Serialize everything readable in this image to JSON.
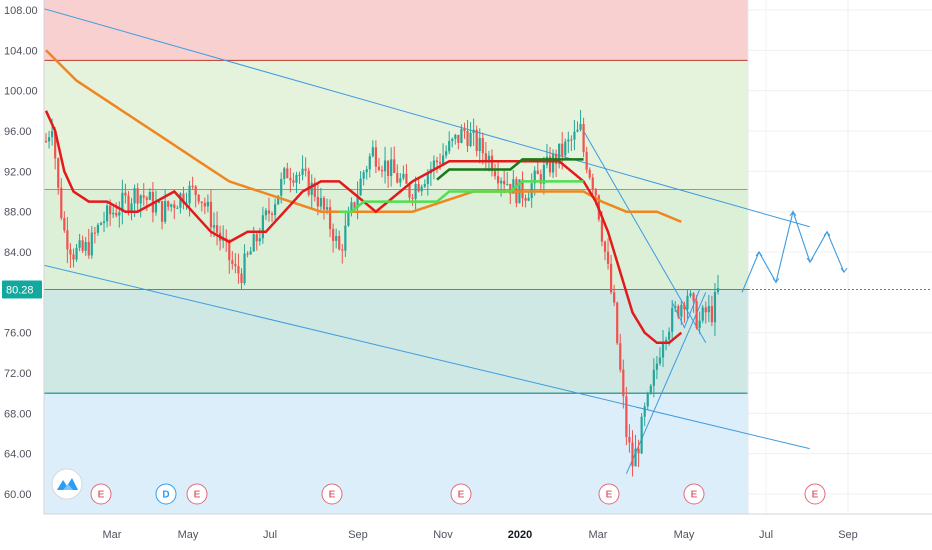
{
  "chart_data": {
    "type": "candlestick",
    "y_ticks": [
      "108.00",
      "104.00",
      "100.00",
      "96.00",
      "92.00",
      "88.00",
      "84.00",
      "80.28",
      "76.00",
      "72.00",
      "68.00",
      "64.00",
      "60.00"
    ],
    "y_tick_values": [
      108,
      104,
      100,
      96,
      92,
      88,
      84,
      76,
      72,
      68,
      64,
      60
    ],
    "last_price": 80.28,
    "last_price_label": "80.28",
    "x_ticks": [
      {
        "label": "Mar",
        "bold": false
      },
      {
        "label": "May",
        "bold": false
      },
      {
        "label": "Jul",
        "bold": false
      },
      {
        "label": "Sep",
        "bold": false
      },
      {
        "label": "Nov",
        "bold": false
      },
      {
        "label": "2020",
        "bold": true
      },
      {
        "label": "Mar",
        "bold": false
      },
      {
        "label": "May",
        "bold": false
      },
      {
        "label": "Jul",
        "bold": false
      },
      {
        "label": "Sep",
        "bold": false
      }
    ],
    "price_path": [
      [
        0,
        95
      ],
      [
        2,
        97
      ],
      [
        4,
        90
      ],
      [
        6,
        86
      ],
      [
        9,
        84
      ],
      [
        12,
        84
      ],
      [
        15,
        85
      ],
      [
        18,
        87
      ],
      [
        22,
        88
      ],
      [
        26,
        89
      ],
      [
        30,
        90
      ],
      [
        34,
        89
      ],
      [
        38,
        88
      ],
      [
        42,
        89
      ],
      [
        46,
        90
      ],
      [
        50,
        90
      ],
      [
        53,
        88
      ],
      [
        56,
        86
      ],
      [
        59,
        84
      ],
      [
        62,
        82
      ],
      [
        64,
        82
      ],
      [
        67,
        84
      ],
      [
        70,
        86
      ],
      [
        73,
        88
      ],
      [
        76,
        90
      ],
      [
        79,
        92
      ],
      [
        82,
        92
      ],
      [
        85,
        91
      ],
      [
        88,
        90
      ],
      [
        91,
        88
      ],
      [
        94,
        86
      ],
      [
        96,
        84
      ],
      [
        98,
        86
      ],
      [
        100,
        88
      ],
      [
        102,
        90
      ],
      [
        104,
        92
      ],
      [
        107,
        94
      ],
      [
        110,
        93
      ],
      [
        113,
        92
      ],
      [
        116,
        91
      ],
      [
        119,
        90
      ],
      [
        122,
        91
      ],
      [
        125,
        92
      ],
      [
        128,
        93
      ],
      [
        131,
        94
      ],
      [
        134,
        95
      ],
      [
        137,
        96
      ],
      [
        140,
        95
      ],
      [
        143,
        94
      ],
      [
        146,
        93
      ],
      [
        148,
        92
      ],
      [
        151,
        91
      ],
      [
        154,
        90
      ],
      [
        157,
        90
      ],
      [
        160,
        91
      ],
      [
        163,
        92
      ],
      [
        166,
        93
      ],
      [
        169,
        94
      ],
      [
        172,
        95
      ],
      [
        175,
        96
      ],
      [
        176,
        94
      ],
      [
        178,
        92
      ],
      [
        180,
        90
      ],
      [
        182,
        86
      ],
      [
        184,
        82
      ],
      [
        186,
        78
      ],
      [
        188,
        72
      ],
      [
        190,
        66
      ],
      [
        192,
        63
      ],
      [
        194,
        65
      ],
      [
        196,
        68
      ],
      [
        198,
        70
      ],
      [
        200,
        73
      ],
      [
        202,
        76
      ],
      [
        204,
        77
      ],
      [
        206,
        78
      ],
      [
        208,
        79
      ],
      [
        210,
        80
      ],
      [
        212,
        78
      ],
      [
        214,
        77
      ],
      [
        216,
        78
      ],
      [
        218,
        78
      ],
      [
        220,
        80
      ]
    ],
    "sma_red": [
      [
        0,
        98
      ],
      [
        3,
        96
      ],
      [
        6,
        92
      ],
      [
        9,
        90
      ],
      [
        14,
        89
      ],
      [
        20,
        89
      ],
      [
        26,
        88
      ],
      [
        30,
        88
      ],
      [
        36,
        89
      ],
      [
        42,
        90
      ],
      [
        48,
        88
      ],
      [
        54,
        86
      ],
      [
        60,
        85
      ],
      [
        66,
        86
      ],
      [
        72,
        86
      ],
      [
        78,
        88
      ],
      [
        84,
        90
      ],
      [
        90,
        91
      ],
      [
        96,
        91
      ],
      [
        100,
        90
      ],
      [
        104,
        89
      ],
      [
        108,
        88
      ],
      [
        112,
        89
      ],
      [
        116,
        90
      ],
      [
        120,
        91
      ],
      [
        126,
        92
      ],
      [
        132,
        93
      ],
      [
        140,
        93
      ],
      [
        148,
        93
      ],
      [
        156,
        93
      ],
      [
        162,
        93
      ],
      [
        168,
        93
      ],
      [
        172,
        92
      ],
      [
        176,
        91
      ],
      [
        180,
        89
      ],
      [
        184,
        86
      ],
      [
        188,
        82
      ],
      [
        192,
        78
      ],
      [
        196,
        76
      ],
      [
        200,
        75
      ],
      [
        204,
        75
      ],
      [
        208,
        76
      ]
    ],
    "sma_orange": [
      [
        0,
        104
      ],
      [
        10,
        101
      ],
      [
        20,
        99
      ],
      [
        30,
        97
      ],
      [
        40,
        95
      ],
      [
        50,
        93
      ],
      [
        60,
        91
      ],
      [
        70,
        90
      ],
      [
        80,
        89
      ],
      [
        90,
        88
      ],
      [
        100,
        88
      ],
      [
        110,
        88
      ],
      [
        120,
        88
      ],
      [
        130,
        89
      ],
      [
        140,
        90
      ],
      [
        150,
        90
      ],
      [
        160,
        90
      ],
      [
        170,
        90
      ],
      [
        176,
        90
      ],
      [
        182,
        89
      ],
      [
        190,
        88
      ],
      [
        200,
        88
      ],
      [
        208,
        87
      ]
    ],
    "sma_green": [
      [
        96,
        88
      ],
      [
        100,
        88
      ],
      [
        104,
        89
      ],
      [
        108,
        89
      ],
      [
        112,
        89
      ],
      [
        116,
        89
      ],
      [
        120,
        89
      ],
      [
        124,
        89
      ],
      [
        128,
        89
      ],
      [
        132,
        90
      ],
      [
        136,
        90
      ],
      [
        140,
        90
      ],
      [
        144,
        90
      ],
      [
        148,
        90
      ],
      [
        152,
        90
      ],
      [
        156,
        91
      ],
      [
        160,
        91
      ],
      [
        164,
        91
      ],
      [
        168,
        91
      ],
      [
        172,
        91
      ],
      [
        176,
        91
      ]
    ],
    "projection": [
      [
        0,
        80
      ],
      [
        2,
        84
      ],
      [
        4,
        81
      ],
      [
        6,
        88
      ],
      [
        8,
        83
      ],
      [
        10,
        86
      ],
      [
        12,
        82
      ]
    ],
    "channel_lines": [
      {
        "from": [
          -5,
          108.5
        ],
        "to": [
          250,
          86.5
        ]
      },
      {
        "from": [
          -5,
          83
        ],
        "to": [
          250,
          64.5
        ]
      },
      {
        "from": [
          176,
          96
        ],
        "to": [
          216,
          75
        ]
      },
      {
        "from": [
          190,
          62
        ],
        "to": [
          216,
          80
        ]
      }
    ],
    "zones": [
      {
        "name": "resistance",
        "from": 103,
        "to": 110,
        "color": "#f8d0d0"
      },
      {
        "name": "upper",
        "from": 90.2,
        "to": 103,
        "color": "#e5f2dc"
      },
      {
        "name": "middle",
        "from": 80.28,
        "to": 90.2,
        "color": "#dcefd7"
      },
      {
        "name": "lower",
        "from": 70,
        "to": 80.28,
        "color": "#cfe8e3"
      },
      {
        "name": "support",
        "from": 58,
        "to": 70,
        "color": "#ddeefb"
      }
    ],
    "events": [
      {
        "label": "E",
        "color": "#e06b7b"
      },
      {
        "label": "D",
        "color": "#2a9df4"
      },
      {
        "label": "E",
        "color": "#e06b7b"
      },
      {
        "label": "E",
        "color": "#e06b7b"
      },
      {
        "label": "E",
        "color": "#e06b7b"
      },
      {
        "label": "E",
        "color": "#e06b7b"
      },
      {
        "label": "E",
        "color": "#e06b7b"
      },
      {
        "label": "E",
        "color": "#e06b7b"
      }
    ],
    "colors": {
      "up": "#26a69a",
      "down": "#ef5350",
      "sma_red": "#e31a1c",
      "sma_orange": "#f0861f",
      "sma_green_dark": "#1a7a1a",
      "sma_green_light": "#4ee04e",
      "trendline": "#3d9be0",
      "price_line": "#13a89e",
      "grid": "#eef0f3"
    }
  },
  "logo": {
    "icon": "tradingview-logo-icon"
  }
}
